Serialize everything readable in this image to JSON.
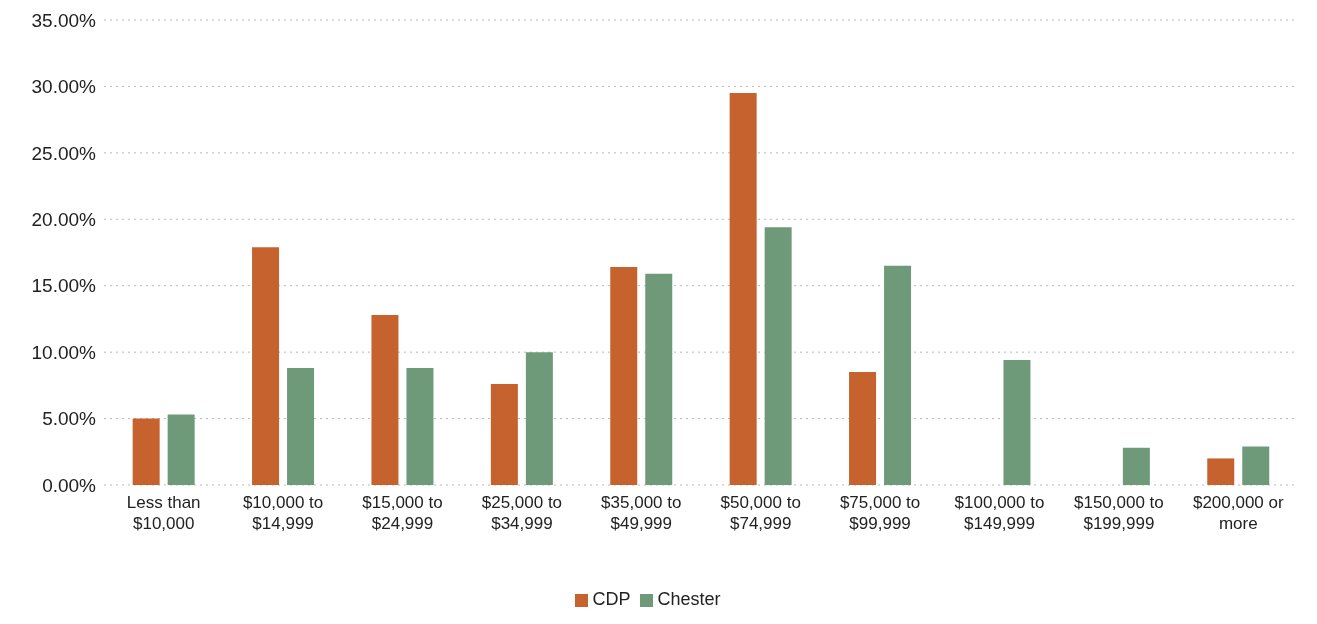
{
  "chart_data": {
    "type": "bar",
    "categories": [
      "Less than $10,000",
      "$10,000 to $14,999",
      "$15,000 to $24,999",
      "$25,000 to $34,999",
      "$35,000 to $49,999",
      "$50,000 to $74,999",
      "$75,000 to $99,999",
      "$100,000 to $149,999",
      "$150,000 to $199,999",
      "$200,000 or more"
    ],
    "series": [
      {
        "name": "CDP",
        "color": "#c6622e",
        "values": [
          5.0,
          17.9,
          12.8,
          7.6,
          16.4,
          29.5,
          8.5,
          null,
          null,
          2.0
        ]
      },
      {
        "name": "Chester",
        "color": "#6f9a7a",
        "values": [
          5.3,
          8.8,
          8.8,
          10.0,
          15.9,
          19.4,
          16.5,
          9.4,
          2.8,
          2.9
        ]
      }
    ],
    "ylim": [
      0,
      35
    ],
    "yticks": [
      {
        "value": 0,
        "label": "0.00%"
      },
      {
        "value": 5,
        "label": "5.00%"
      },
      {
        "value": 10,
        "label": "10.00%"
      },
      {
        "value": 15,
        "label": "15.00%"
      },
      {
        "value": 20,
        "label": "20.00%"
      },
      {
        "value": 25,
        "label": "25.00%"
      },
      {
        "value": 30,
        "label": "30.00%"
      },
      {
        "value": 35,
        "label": "35.00%"
      }
    ],
    "grid": "y",
    "legend": "bottom"
  }
}
